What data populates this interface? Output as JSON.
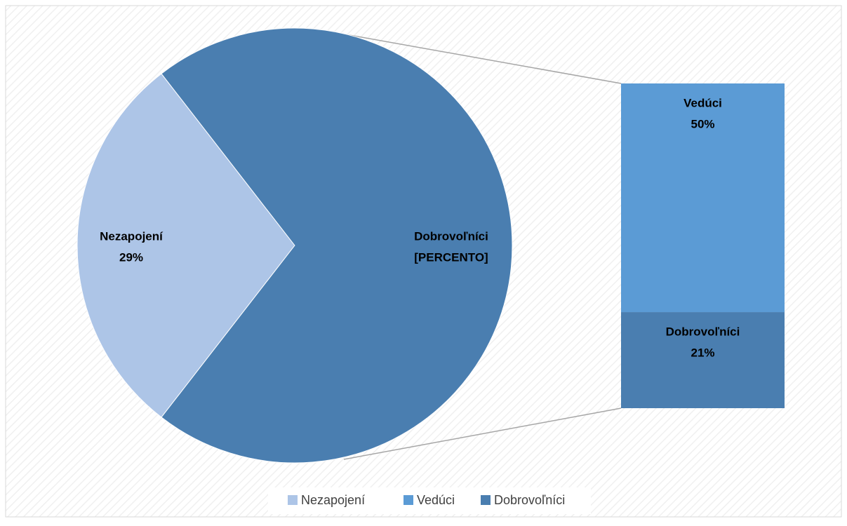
{
  "chart_data": {
    "type": "bar-of-pie",
    "categories": [
      "Nezapojení",
      "Vedúci",
      "Dobrovoľníci"
    ],
    "values": [
      29,
      50,
      21
    ],
    "value_labels": [
      "29%",
      "50%",
      "21%"
    ],
    "colors": [
      "#adc5e7",
      "#5b9bd5",
      "#4a7eb0"
    ],
    "other_slice": {
      "name": "Dobrovoľníci",
      "label": "[PERCENTO]",
      "color": "#4a7eb0"
    },
    "legend": "bottom"
  }
}
